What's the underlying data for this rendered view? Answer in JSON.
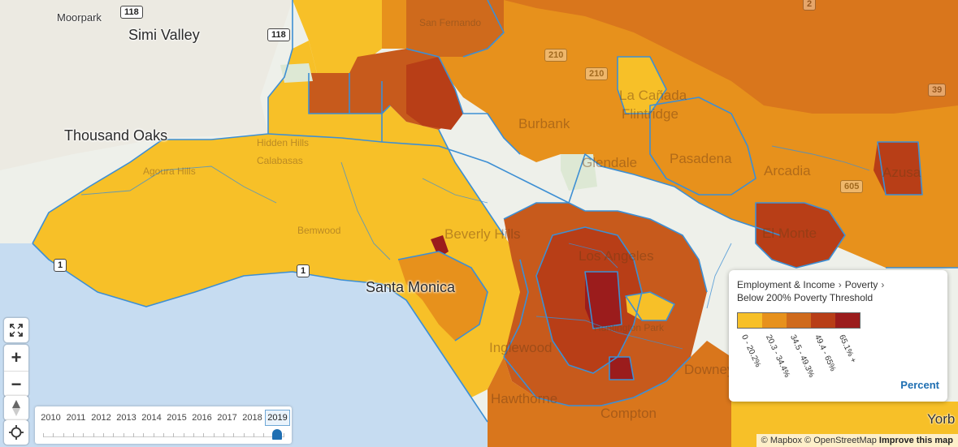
{
  "map": {
    "places_major": [
      "Simi Valley",
      "Thousand Oaks",
      "Santa Monica"
    ],
    "places_ghost": [
      "Burbank",
      "La Cañada",
      "Flintridge",
      "Glendale",
      "Pasadena",
      "Arcadia",
      "Azusa",
      "El Monte",
      "Beverly Hills",
      "Los Angeles",
      "Inglewood",
      "Hawthorne",
      "Compton",
      "Downey"
    ],
    "places_small": [
      "Moorpark",
      "Yorb"
    ],
    "places_faint": [
      "San Fernando",
      "Hidden Hills",
      "Calabasas",
      "Agoura Hills",
      "Bemwood",
      "Huntington Park"
    ],
    "highway_shields": [
      "118",
      "118",
      "210",
      "210",
      "2",
      "39",
      "605",
      "1",
      "1"
    ],
    "fill_colors": {
      "bin1": "#f7c028",
      "bin2": "#e7911c",
      "bin3": "#cf6a1c",
      "bin4": "#b83e17",
      "bin5": "#9b1c1c",
      "boundary": "#3d8fd4",
      "ocean": "#c6dcf1",
      "land": "#eef0ea"
    }
  },
  "controls": {
    "fullscreen_icon": "expand-icon",
    "zoom_in": "+",
    "zoom_out": "−",
    "compass_icon": "compass-icon",
    "locate_icon": "locate-icon"
  },
  "timeline": {
    "years": [
      "2010",
      "2011",
      "2012",
      "2013",
      "2014",
      "2015",
      "2016",
      "2017",
      "2018",
      "2019"
    ],
    "selected": "2019"
  },
  "legend": {
    "crumb": [
      "Employment & Income",
      "Poverty",
      "Below 200% Poverty Threshold"
    ],
    "bins": [
      {
        "label": "0 - 20.2%",
        "color": "#f7c028"
      },
      {
        "label": "20.3 - 34.4%",
        "color": "#e7911c"
      },
      {
        "label": "34.5 - 49.3%",
        "color": "#cf6a1c"
      },
      {
        "label": "49.4 - 65%",
        "color": "#b83e17"
      },
      {
        "label": "65.1% +",
        "color": "#9b1c1c"
      }
    ],
    "unit_button": "Percent"
  },
  "attribution": {
    "mapbox": "© Mapbox",
    "osm": "© OpenStreetMap",
    "improve": "Improve this map"
  }
}
